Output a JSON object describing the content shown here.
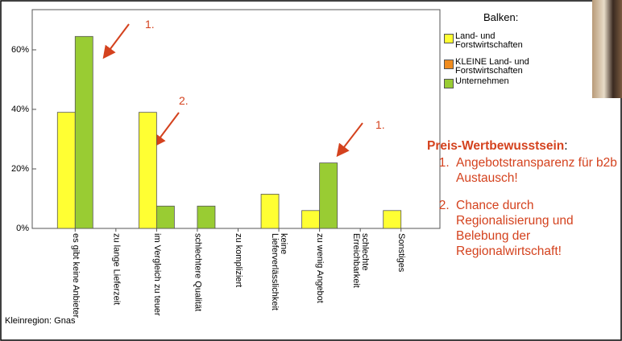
{
  "chart_data": {
    "type": "bar",
    "categories": [
      "es gibt keine Anbieter",
      "zu lange Lieferzeit",
      "im Vergleich zu teuer",
      "schlechtere Qualität",
      "zu kompliziert",
      "keine\nLieferverlässlichkeit",
      "zu wenig Angebot",
      "schlechte\nErreichbarkeit",
      "Sonstiges"
    ],
    "series": [
      {
        "name": "Land- und\nForstwirtschaften",
        "color": "#ffff33",
        "values": [
          39,
          null,
          39,
          null,
          null,
          11.5,
          6,
          null,
          6
        ]
      },
      {
        "name": "KLEINE Land- und\nForstwirtschaften",
        "color": "#f08c1e",
        "values": [
          null,
          null,
          null,
          null,
          null,
          null,
          null,
          null,
          null
        ]
      },
      {
        "name": "Unternehmen",
        "color": "#99cc33",
        "values": [
          64.5,
          null,
          7.5,
          7.5,
          null,
          null,
          22,
          null,
          null
        ]
      }
    ],
    "legend_title": "Balken:",
    "ylim": [
      0,
      73.5
    ],
    "yticks": [
      {
        "value": 0,
        "label": "0%"
      },
      {
        "value": 20,
        "label": "20%"
      },
      {
        "value": 40,
        "label": "40%"
      },
      {
        "value": 60,
        "label": "60%"
      }
    ],
    "annotations": [
      "1.",
      "2.",
      "1."
    ],
    "footnote": "Kleinregion: Gnas"
  },
  "notes": {
    "title": "Preis-Wertbewusstsein",
    "colon": ":",
    "items": [
      "Angebotstransparenz für b2b Austausch!",
      "Chance durch Regionalisierung und Belebung der Regionalwirtschaft!"
    ]
  }
}
